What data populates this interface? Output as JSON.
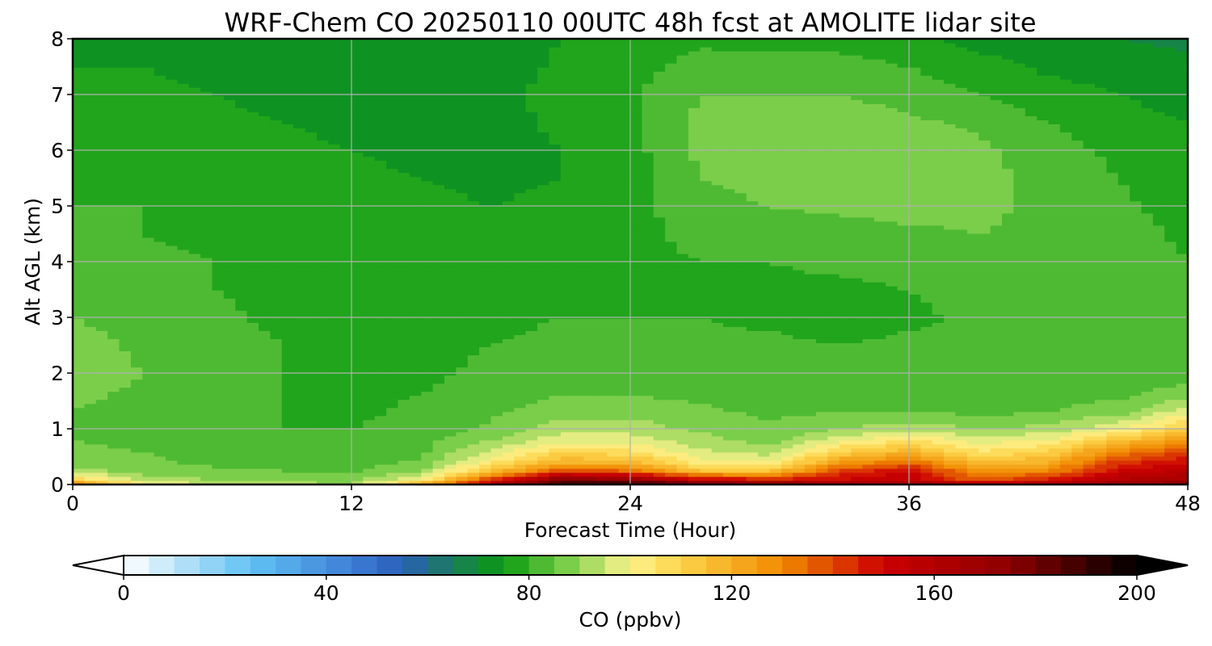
{
  "chart_data": {
    "type": "heatmap",
    "title": "WRF-Chem CO  20250110 00UTC 48h fcst at AMOLITE lidar site",
    "xlabel": "Forecast Time (Hour)",
    "ylabel": "Alt AGL (km)",
    "xlim": [
      0,
      48
    ],
    "ylim": [
      0,
      8
    ],
    "x_ticks": [
      "0",
      "12",
      "24",
      "36",
      "48"
    ],
    "y_ticks": [
      "0",
      "1",
      "2",
      "3",
      "4",
      "5",
      "6",
      "7",
      "8"
    ],
    "grid": true,
    "colorbar": {
      "label": "CO  (ppbv)",
      "range": [
        0,
        200
      ],
      "step": 5,
      "ticks": [
        "0",
        "40",
        "80",
        "120",
        "160",
        "200"
      ],
      "extend": "both",
      "stops": [
        [
          0,
          "#ffffff"
        ],
        [
          15,
          "#9fd8f6"
        ],
        [
          25,
          "#61c2f4"
        ],
        [
          45,
          "#3d7ed6"
        ],
        [
          55,
          "#2a5fb8"
        ],
        [
          65,
          "#1b7c5a"
        ],
        [
          75,
          "#0a9b10"
        ],
        [
          88,
          "#7fd04c"
        ],
        [
          100,
          "#fdf38f"
        ],
        [
          110,
          "#fdd34a"
        ],
        [
          130,
          "#f08a00"
        ],
        [
          150,
          "#cc0000"
        ],
        [
          175,
          "#8b0000"
        ],
        [
          200,
          "#000000"
        ]
      ]
    },
    "times_hr": [
      0,
      3,
      6,
      9,
      12,
      15,
      18,
      21,
      24,
      27,
      30,
      33,
      36,
      39,
      42,
      45,
      48
    ],
    "heights_km": [
      0,
      0.1,
      0.25,
      0.4,
      0.6,
      0.8,
      1.0,
      1.3,
      1.6,
      2.0,
      2.5,
      3.0,
      3.5,
      4.0,
      4.5,
      5.0,
      5.5,
      6.0,
      6.5,
      7.0,
      7.5,
      8.0
    ],
    "co_ppbv": [
      [
        130,
        105,
        95,
        92,
        90,
        120,
        160,
        195,
        195,
        185,
        180,
        170,
        170,
        160,
        165,
        170,
        175
      ],
      [
        110,
        92,
        90,
        88,
        88,
        100,
        140,
        175,
        170,
        150,
        145,
        150,
        155,
        135,
        145,
        160,
        165
      ],
      [
        92,
        88,
        86,
        85,
        84,
        90,
        115,
        140,
        135,
        115,
        115,
        140,
        150,
        125,
        130,
        150,
        158
      ],
      [
        88,
        86,
        84,
        83,
        82,
        86,
        104,
        120,
        118,
        102,
        100,
        125,
        135,
        115,
        120,
        142,
        150
      ],
      [
        86,
        85,
        83,
        82,
        81,
        84,
        96,
        108,
        106,
        96,
        92,
        110,
        118,
        105,
        110,
        130,
        140
      ],
      [
        85,
        84,
        82,
        81,
        80,
        83,
        90,
        98,
        98,
        92,
        88,
        98,
        105,
        98,
        100,
        115,
        125
      ],
      [
        84,
        83,
        81,
        80,
        80,
        82,
        86,
        93,
        93,
        89,
        86,
        90,
        94,
        90,
        92,
        100,
        112
      ],
      [
        85,
        83,
        81,
        80,
        79,
        81,
        84,
        88,
        88,
        86,
        84,
        85,
        85,
        84,
        85,
        88,
        98
      ],
      [
        86,
        84,
        82,
        80,
        79,
        80,
        82,
        85,
        85,
        84,
        83,
        83,
        82,
        82,
        83,
        84,
        88
      ],
      [
        88,
        85,
        82,
        80,
        79,
        79,
        81,
        83,
        83,
        83,
        82,
        81,
        81,
        81,
        82,
        82,
        82
      ],
      [
        87,
        84,
        82,
        80,
        78,
        79,
        80,
        81,
        81,
        81,
        81,
        80,
        81,
        81,
        82,
        82,
        82
      ],
      [
        85,
        83,
        81,
        79,
        78,
        78,
        79,
        80,
        80,
        80,
        79,
        78,
        79,
        81,
        83,
        84,
        82
      ],
      [
        83,
        82,
        80,
        79,
        78,
        78,
        78,
        79,
        79,
        79,
        79,
        79,
        80,
        82,
        84,
        84,
        81
      ],
      [
        82,
        81,
        80,
        79,
        78,
        77,
        77,
        78,
        79,
        80,
        80,
        81,
        82,
        84,
        85,
        83,
        80
      ],
      [
        81,
        80,
        79,
        78,
        77,
        77,
        76,
        77,
        79,
        81,
        83,
        83,
        84,
        85,
        84,
        82,
        79
      ],
      [
        80,
        80,
        79,
        78,
        77,
        76,
        75,
        76,
        78,
        83,
        85,
        86,
        87,
        86,
        84,
        81,
        78
      ],
      [
        79,
        79,
        78,
        77,
        76,
        75,
        74,
        75,
        78,
        85,
        87,
        89,
        89,
        87,
        83,
        80,
        77
      ],
      [
        78,
        78,
        77,
        76,
        75,
        74,
        73,
        75,
        78,
        86,
        88,
        90,
        89,
        86,
        82,
        79,
        76
      ],
      [
        77,
        77,
        76,
        75,
        74,
        73,
        73,
        76,
        79,
        86,
        87,
        88,
        86,
        84,
        80,
        77,
        75
      ],
      [
        76,
        76,
        75,
        74,
        73,
        72,
        73,
        77,
        79,
        85,
        85,
        85,
        83,
        80,
        77,
        75,
        73
      ],
      [
        75,
        75,
        74,
        73,
        71,
        71,
        72,
        76,
        78,
        82,
        82,
        82,
        80,
        77,
        74,
        73,
        71
      ],
      [
        74,
        74,
        73,
        72,
        70,
        70,
        71,
        75,
        77,
        79,
        78,
        78,
        76,
        73,
        72,
        70,
        69
      ]
    ]
  }
}
